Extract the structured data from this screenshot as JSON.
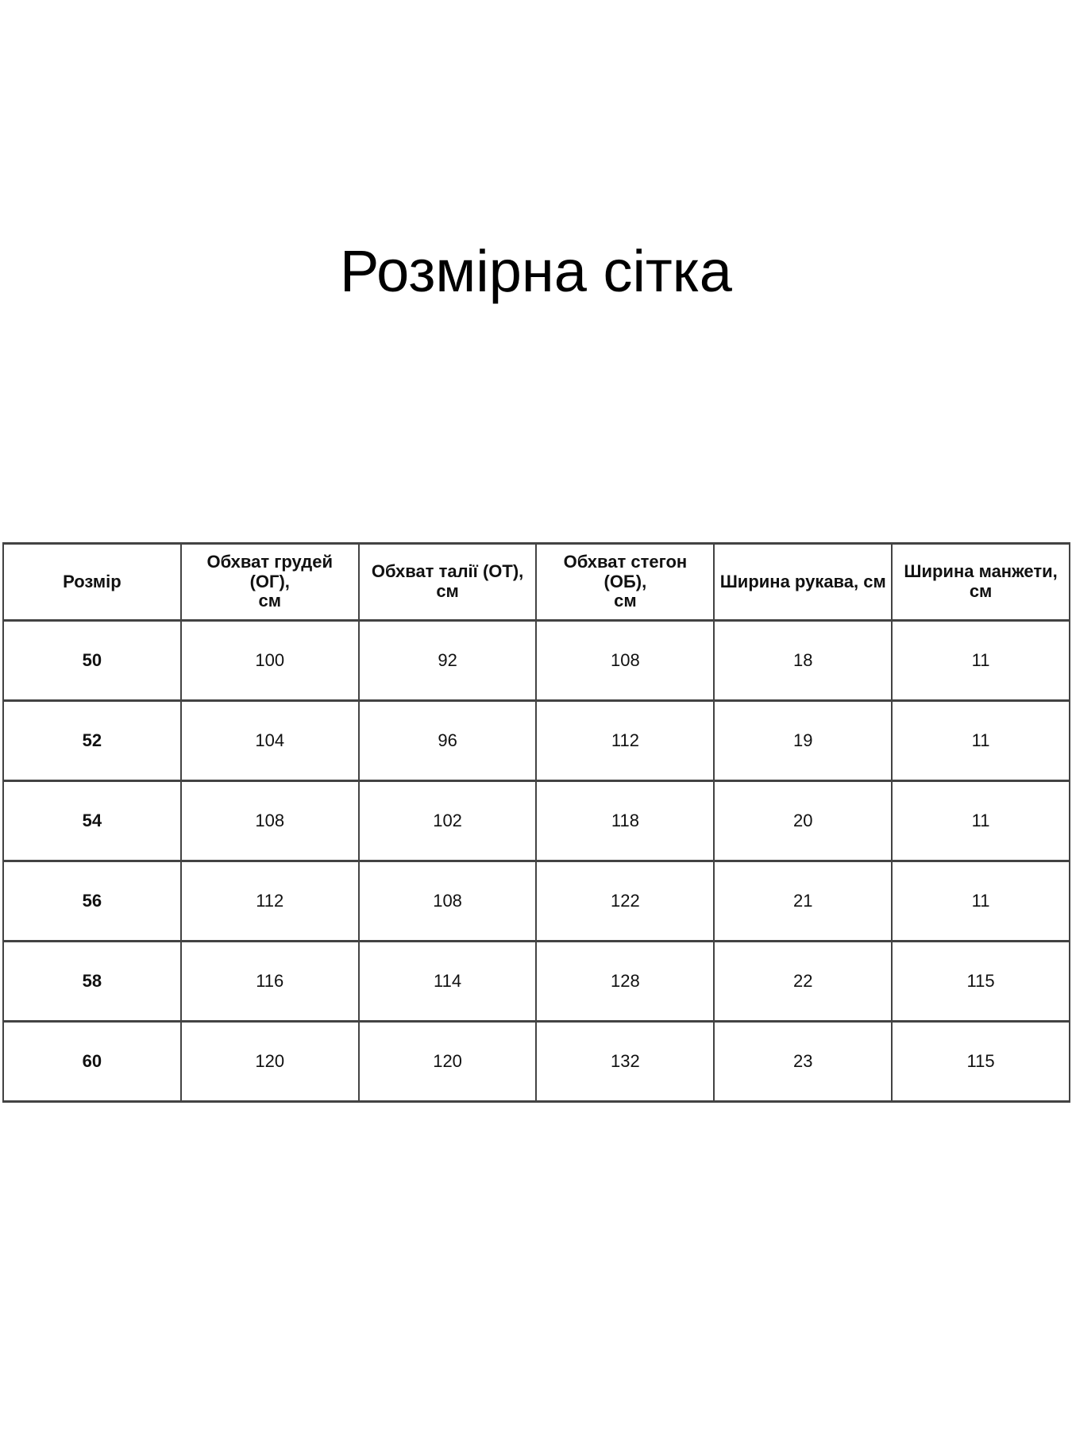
{
  "page": {
    "title": "Розмірна сітка",
    "background_color": "#ffffff",
    "text_color": "#111111",
    "table_border_color": "#434343"
  },
  "size_table": {
    "headers": [
      {
        "line1": "Розмір",
        "line2": ""
      },
      {
        "line1": "Обхват грудей (ОГ),",
        "line2": "см"
      },
      {
        "line1": "Обхват талії (ОТ),",
        "line2": "см"
      },
      {
        "line1": "Обхват стегон (ОБ),",
        "line2": "см"
      },
      {
        "line1": "Ширина рукава, см",
        "line2": ""
      },
      {
        "line1": "Ширина манжети,",
        "line2": "см"
      }
    ],
    "rows": [
      [
        "50",
        "100",
        "92",
        "108",
        "18",
        "11"
      ],
      [
        "52",
        "104",
        "96",
        "112",
        "19",
        "11"
      ],
      [
        "54",
        "108",
        "102",
        "118",
        "20",
        "11"
      ],
      [
        "56",
        "112",
        "108",
        "122",
        "21",
        "11"
      ],
      [
        "58",
        "116",
        "114",
        "128",
        "22",
        "115"
      ],
      [
        "60",
        "120",
        "120",
        "132",
        "23",
        "115"
      ]
    ]
  }
}
